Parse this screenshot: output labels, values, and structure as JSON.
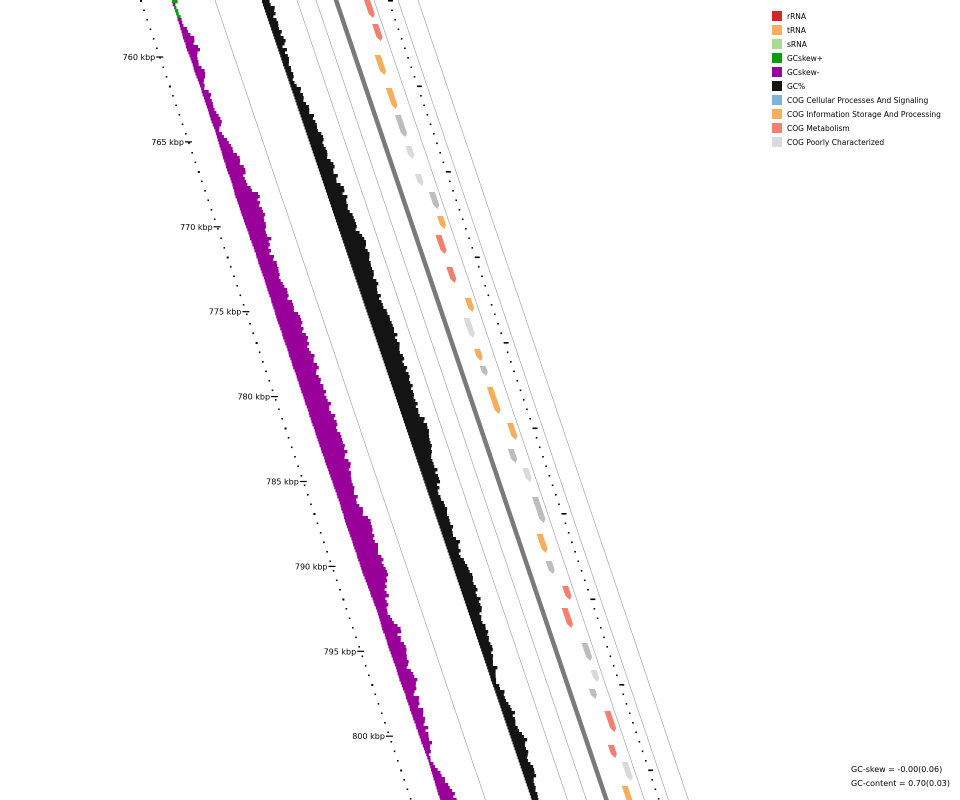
{
  "legend": [
    {
      "label": "rRNA",
      "color": "#d62728"
    },
    {
      "label": "tRNA",
      "color": "#f6ae5c"
    },
    {
      "label": "sRNA",
      "color": "#a8dc95"
    },
    {
      "label": "GCskew+",
      "color": "#0c9b0c"
    },
    {
      "label": "GCskew-",
      "color": "#990099"
    },
    {
      "label": "GC%",
      "color": "#141414"
    },
    {
      "label": "COG Cellular Processes And Signaling",
      "color": "#7fb3db"
    },
    {
      "label": "COG Information Storage And Processing",
      "color": "#f6ae5c"
    },
    {
      "label": "COG Metabolism",
      "color": "#f27f70"
    },
    {
      "label": "COG Poorly Characterized",
      "color": "#dadada"
    }
  ],
  "axis_labels": [
    "760 kbp",
    "765 kbp",
    "770 kbp",
    "775 kbp",
    "780 kbp",
    "785 kbp",
    "790 kbp",
    "795 kbp",
    "800 kbp"
  ],
  "stats": {
    "gc_skew": "GC-skew = -0.00(0.06)",
    "gc_content": "GC-content = 0.70(0.03)"
  },
  "colors": {
    "backbone": "#7a7a7a",
    "guide": "#9a9a9a",
    "hypothetical": "#bdbdbd"
  }
}
